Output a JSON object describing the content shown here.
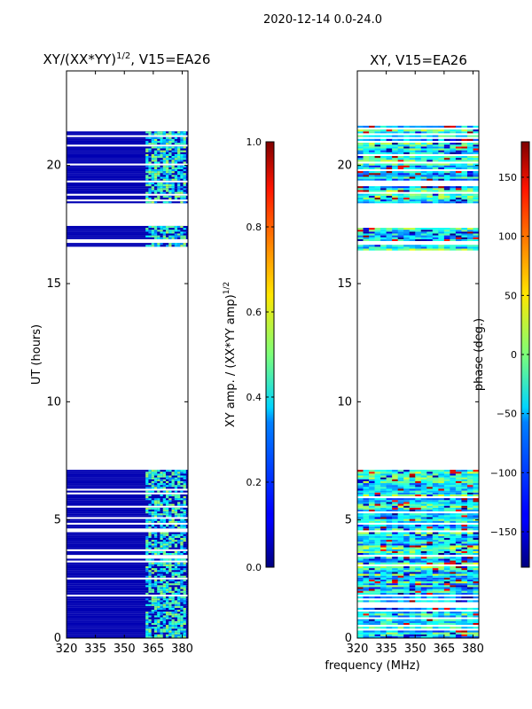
{
  "suptitle": "2020-12-14 0.0-24.0",
  "xlabel": "frequency (MHz)",
  "chart_data": [
    {
      "type": "heatmap",
      "title_main": "XY/(XX*YY)",
      "title_sup": "1/2",
      "title_tail": ", V15=EA26",
      "ylabel": "UT (hours)",
      "xlim": [
        320,
        383
      ],
      "ylim": [
        0,
        24
      ],
      "xticks": [
        "320",
        "335",
        "350",
        "365",
        "380"
      ],
      "xtick_values": [
        320,
        335,
        350,
        365,
        380
      ],
      "yticks": [
        "0",
        "5",
        "10",
        "15",
        "20"
      ],
      "ytick_values": [
        0,
        5,
        10,
        15,
        20
      ],
      "colormap": "jet",
      "colorbar": {
        "label_main": "XY amp. / (XX*YY amp)",
        "label_sup": "1/2",
        "range": [
          0.0,
          1.0
        ],
        "ticks": [
          "0.0",
          "0.2",
          "0.4",
          "0.6",
          "0.8",
          "1.0"
        ],
        "tick_values": [
          0.0,
          0.2,
          0.4,
          0.6,
          0.8,
          1.0
        ]
      },
      "data_time_ranges": [
        [
          0,
          7.1
        ],
        [
          16.4,
          17.4
        ],
        [
          18.4,
          21.6
        ]
      ],
      "background_value": 0.05,
      "active_freq_range": [
        361,
        382
      ],
      "active_value_range": [
        0.25,
        0.55
      ]
    },
    {
      "type": "heatmap",
      "title": "XY, V15=EA26",
      "xlim": [
        320,
        383
      ],
      "ylim": [
        0,
        24
      ],
      "xticks": [
        "320",
        "335",
        "350",
        "365",
        "380"
      ],
      "xtick_values": [
        320,
        335,
        350,
        365,
        380
      ],
      "yticks": [
        "0",
        "5",
        "10",
        "15",
        "20"
      ],
      "ytick_values": [
        0,
        5,
        10,
        15,
        20
      ],
      "colormap": "jet",
      "colorbar": {
        "label": "phase (deg.)",
        "range": [
          -180,
          180
        ],
        "ticks": [
          "−150",
          "−100",
          "−50",
          "0",
          "50",
          "100",
          "150"
        ],
        "tick_values": [
          -150,
          -100,
          -50,
          0,
          50,
          100,
          150
        ]
      },
      "data_time_ranges": [
        [
          0,
          7.1
        ],
        [
          16.4,
          17.4
        ],
        [
          18.4,
          21.6
        ]
      ],
      "value_range": [
        -180,
        180
      ]
    }
  ]
}
